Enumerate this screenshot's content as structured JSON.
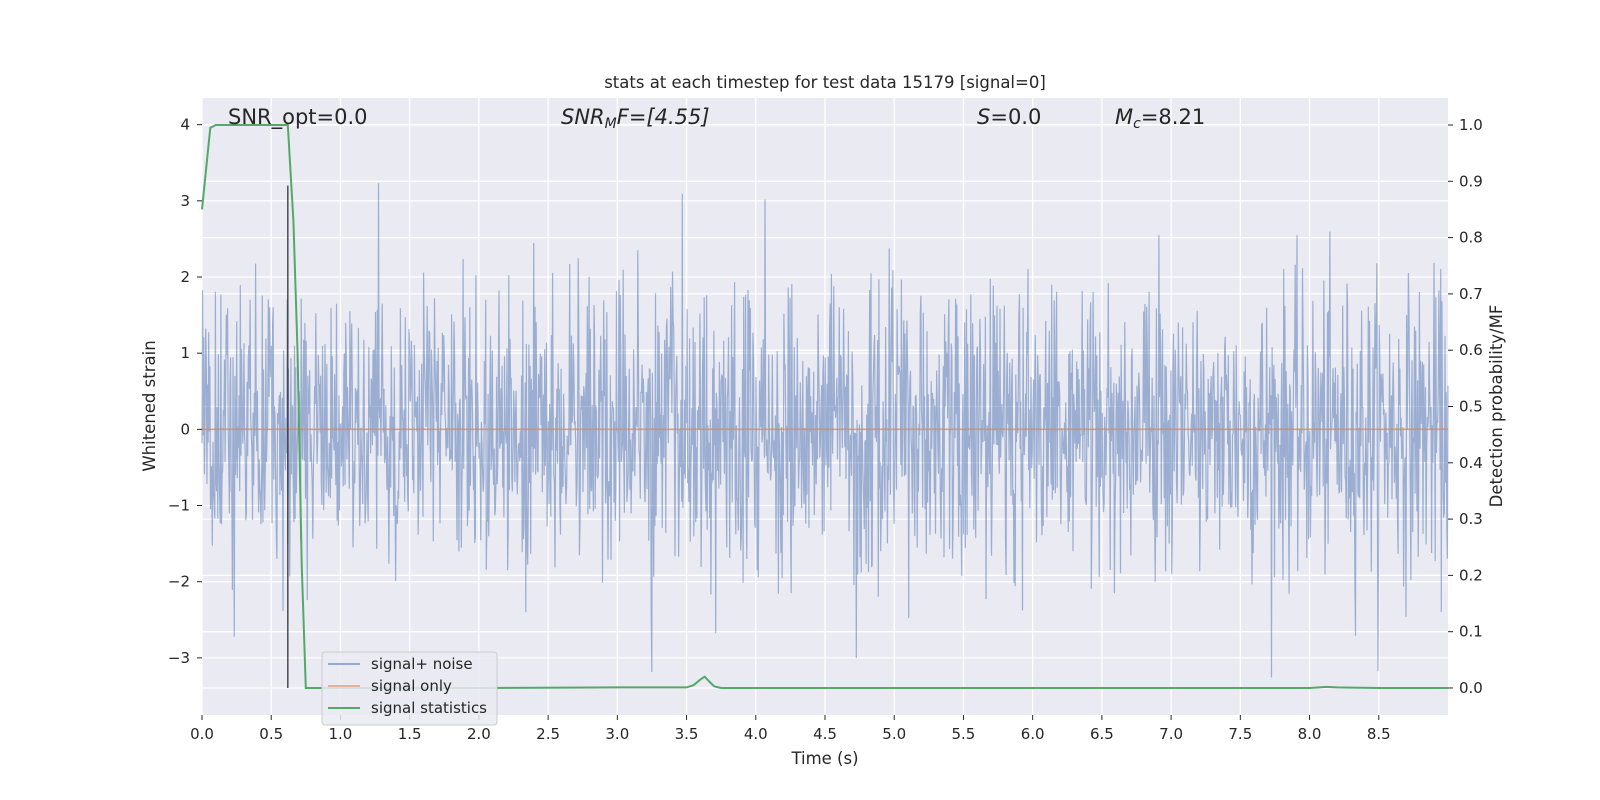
{
  "chart_data": {
    "type": "line",
    "title": "stats at each timestep for test data 15179 [signal=0]",
    "xlabel": "Time (s)",
    "ylabel_left": "Whitened strain",
    "ylabel_right": "Detection probability/MF",
    "xlim": [
      0.0,
      9.0
    ],
    "ylim_left": [
      -3.75,
      4.35
    ],
    "ylim_right": [
      -0.048,
      1.048
    ],
    "x_ticks": [
      0.0,
      0.5,
      1.0,
      1.5,
      2.0,
      2.5,
      3.0,
      3.5,
      4.0,
      4.5,
      5.0,
      5.5,
      6.0,
      6.5,
      7.0,
      7.5,
      8.0,
      8.5
    ],
    "x_tick_labels": [
      "0.0",
      "0.5",
      "1.0",
      "1.5",
      "2.0",
      "2.5",
      "3.0",
      "3.5",
      "4.0",
      "4.5",
      "5.0",
      "5.5",
      "6.0",
      "6.5",
      "7.0",
      "7.5",
      "8.0",
      "8.5"
    ],
    "y_ticks_left": [
      -3,
      -2,
      -1,
      0,
      1,
      2,
      3,
      4
    ],
    "y_tick_labels_left": [
      "−3",
      "−2",
      "−1",
      "0",
      "1",
      "2",
      "3",
      "4"
    ],
    "y_ticks_right": [
      0.0,
      0.1,
      0.2,
      0.3,
      0.4,
      0.5,
      0.6,
      0.7,
      0.8,
      0.9,
      1.0
    ],
    "y_tick_labels_right": [
      "0.0",
      "0.1",
      "0.2",
      "0.3",
      "0.4",
      "0.5",
      "0.6",
      "0.7",
      "0.8",
      "0.9",
      "1.0"
    ],
    "grid": true,
    "legend_position": "lower-left",
    "annotations": {
      "snr_opt": "SNR_opt=0.0",
      "snr_mf_base": "SNR",
      "snr_mf_sub": "M",
      "snr_mf_rest": "F=[4.55]",
      "s_italic": "S",
      "s_rest": "=0.0",
      "mc_base": "M",
      "mc_sub": "c",
      "mc_rest": "=8.21"
    },
    "marker_line_x": 0.62,
    "series": [
      {
        "name": "signal+ noise",
        "color": "#4c72b0",
        "axis": "left",
        "noise_envelope": {
          "typical_abs": 1.3,
          "peak_high": 4.0,
          "peak_low": -3.4,
          "samples": 2048
        }
      },
      {
        "name": "signal only",
        "color": "#dd8452",
        "axis": "left",
        "x": [
          0.0,
          9.0
        ],
        "y": [
          0.0,
          0.0
        ]
      },
      {
        "name": "signal statistics",
        "color": "#55a868",
        "axis": "right",
        "x": [
          0.0,
          0.06,
          0.1,
          0.15,
          0.2,
          0.3,
          0.4,
          0.5,
          0.55,
          0.6,
          0.62,
          0.66,
          0.69,
          0.72,
          0.75,
          0.8,
          1.0,
          2.0,
          3.0,
          3.5,
          3.55,
          3.6,
          3.63,
          3.67,
          3.7,
          3.75,
          4.0,
          5.0,
          6.0,
          7.0,
          8.0,
          8.12,
          8.2,
          8.5,
          9.0
        ],
        "y": [
          0.85,
          0.995,
          1.0,
          1.0,
          1.0,
          1.0,
          1.0,
          1.0,
          1.0,
          1.0,
          1.0,
          0.83,
          0.6,
          0.22,
          0.0,
          0.0,
          0.0,
          0.0,
          0.001,
          0.001,
          0.005,
          0.015,
          0.02,
          0.01,
          0.003,
          0.0,
          0.0,
          0.0,
          0.0,
          0.0,
          0.0,
          0.002,
          0.001,
          0.0,
          0.0
        ]
      }
    ]
  }
}
